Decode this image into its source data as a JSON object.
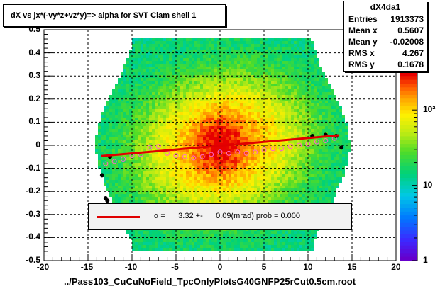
{
  "title": "dX vs    jx*(-vy*z+vz*y)=> alpha for SVT Clam shell 1",
  "stats": {
    "name": "dX4da1",
    "rows": [
      {
        "label": "Entries",
        "value": "1913373"
      },
      {
        "label": "Mean x",
        "value": "0.5607"
      },
      {
        "label": "Mean y",
        "value": "-0.02008"
      },
      {
        "label": "RMS x",
        "value": "4.267"
      },
      {
        "label": "RMS y",
        "value": "0.1678"
      }
    ]
  },
  "legend": {
    "symbol": "α",
    "text": " =      3.32 +-      0.09(mrad) prob = 0.000"
  },
  "colors": {
    "fit_line": "#e00000",
    "profile_points": "#000000",
    "open_markers": "#ff66cc"
  },
  "chart_data": {
    "type": "heatmap",
    "title": "dX vs    jx*(-vy*z+vz*y)=> alpha for SVT Clam shell 1",
    "xlabel": "../Pass103_CuCuNoField_TpcOnlyPlotsG40GNFP25rCut0.5cm.root",
    "ylabel": "",
    "xlim": [
      -20,
      20
    ],
    "ylim": [
      -0.5,
      0.5
    ],
    "x_ticks": [
      "-20",
      "-15",
      "-10",
      "-5",
      "0",
      "5",
      "10",
      "15",
      "20"
    ],
    "y_ticks": [
      "-0.5",
      "-0.4",
      "-0.3",
      "-0.2",
      "-0.1",
      "0",
      "0.1",
      "0.2",
      "0.3",
      "0.4",
      "0.5"
    ],
    "z_scale": "log",
    "z_ticks": [
      "1",
      "10",
      "10²"
    ],
    "grid": true,
    "fit": {
      "slope": 0.00332,
      "intercept": -0.002,
      "x_range": [
        -13.5,
        13.5
      ]
    },
    "profile_points": [
      {
        "x": -13.4,
        "y": -0.13
      },
      {
        "x": -13.0,
        "y": -0.23
      },
      {
        "x": -12.8,
        "y": -0.24
      },
      {
        "x": -12.5,
        "y": -0.05
      },
      {
        "x": 10.5,
        "y": 0.04
      },
      {
        "x": 12.0,
        "y": 0.045
      },
      {
        "x": 13.2,
        "y": 0.04
      },
      {
        "x": 13.8,
        "y": -0.01
      }
    ],
    "open_markers": [
      {
        "x": -13.0,
        "y": -0.08
      },
      {
        "x": -12.0,
        "y": -0.07
      },
      {
        "x": -11.0,
        "y": -0.06
      },
      {
        "x": -10.0,
        "y": -0.045
      },
      {
        "x": -9.0,
        "y": -0.04
      },
      {
        "x": -8.0,
        "y": -0.01
      },
      {
        "x": -7.0,
        "y": -0.005
      },
      {
        "x": -6.0,
        "y": -0.035
      },
      {
        "x": -5.0,
        "y": -0.045
      },
      {
        "x": -4.0,
        "y": -0.05
      },
      {
        "x": -3.0,
        "y": -0.055
      },
      {
        "x": -2.0,
        "y": -0.05
      },
      {
        "x": -1.0,
        "y": -0.04
      },
      {
        "x": 0.0,
        "y": -0.03
      },
      {
        "x": 1.0,
        "y": -0.035
      },
      {
        "x": 2.0,
        "y": -0.03
      },
      {
        "x": 3.0,
        "y": -0.035
      },
      {
        "x": 4.0,
        "y": -0.03
      },
      {
        "x": 5.0,
        "y": -0.02
      },
      {
        "x": 6.0,
        "y": -0.015
      },
      {
        "x": 7.0,
        "y": -0.015
      },
      {
        "x": 8.0,
        "y": -0.005
      },
      {
        "x": 9.0,
        "y": 0.0
      },
      {
        "x": 10.0,
        "y": 0.005
      },
      {
        "x": 11.0,
        "y": 0.015
      },
      {
        "x": 12.0,
        "y": 0.02
      },
      {
        "x": 13.0,
        "y": 0.03
      }
    ]
  }
}
